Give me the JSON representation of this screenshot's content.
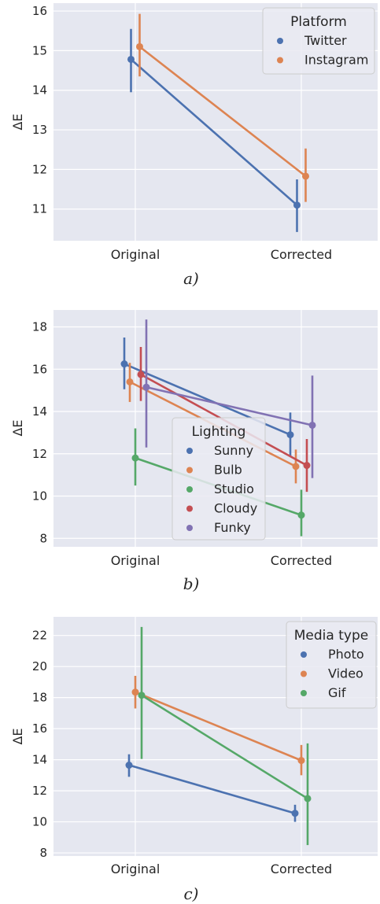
{
  "chart_data": [
    {
      "type": "point",
      "ylabel": "ΔE",
      "caption": "a)",
      "categories": [
        "Original",
        "Corrected"
      ],
      "ylim": [
        10.2,
        16.2
      ],
      "yticks": [
        11,
        12,
        13,
        14,
        15,
        16
      ],
      "grid": true,
      "legend": {
        "title": "Platform",
        "placement": "top-right"
      },
      "series": [
        {
          "name": "Twitter",
          "color": "#4c72b0",
          "values": [
            14.78,
            11.1
          ],
          "ci": [
            [
              13.95,
              15.55
            ],
            [
              10.42,
              11.75
            ]
          ]
        },
        {
          "name": "Instagram",
          "color": "#dd8452",
          "values": [
            15.1,
            11.83
          ],
          "ci": [
            [
              14.35,
              15.93
            ],
            [
              11.18,
              12.53
            ]
          ]
        }
      ]
    },
    {
      "type": "point",
      "ylabel": "ΔE",
      "caption": "b)",
      "categories": [
        "Original",
        "Corrected"
      ],
      "ylim": [
        7.6,
        18.8
      ],
      "yticks": [
        8,
        10,
        12,
        14,
        16,
        18
      ],
      "grid": true,
      "legend": {
        "title": "Lighting",
        "placement": "center"
      },
      "series": [
        {
          "name": "Sunny",
          "color": "#4c72b0",
          "values": [
            16.25,
            12.9
          ],
          "ci": [
            [
              15.05,
              17.5
            ],
            [
              11.9,
              13.95
            ]
          ]
        },
        {
          "name": "Bulb",
          "color": "#dd8452",
          "values": [
            15.4,
            11.4
          ],
          "ci": [
            [
              14.45,
              16.3
            ],
            [
              10.6,
              12.2
            ]
          ]
        },
        {
          "name": "Studio",
          "color": "#55a868",
          "values": [
            11.8,
            9.1
          ],
          "ci": [
            [
              10.5,
              13.2
            ],
            [
              8.1,
              10.3
            ]
          ]
        },
        {
          "name": "Cloudy",
          "color": "#c44e52",
          "values": [
            15.75,
            11.45
          ],
          "ci": [
            [
              14.5,
              17.05
            ],
            [
              10.2,
              12.7
            ]
          ]
        },
        {
          "name": "Funky",
          "color": "#8172b3",
          "values": [
            15.15,
            13.35
          ],
          "ci": [
            [
              12.3,
              18.35
            ],
            [
              10.85,
              15.7
            ]
          ]
        }
      ]
    },
    {
      "type": "point",
      "ylabel": "ΔE",
      "caption": "c)",
      "categories": [
        "Original",
        "Corrected"
      ],
      "ylim": [
        7.8,
        23.2
      ],
      "yticks": [
        8,
        10,
        12,
        14,
        16,
        18,
        20,
        22
      ],
      "grid": true,
      "legend": {
        "title": "Media type",
        "placement": "top-right"
      },
      "series": [
        {
          "name": "Photo",
          "color": "#4c72b0",
          "values": [
            13.65,
            10.55
          ],
          "ci": [
            [
              12.9,
              14.35
            ],
            [
              10.0,
              11.1
            ]
          ]
        },
        {
          "name": "Video",
          "color": "#dd8452",
          "values": [
            18.35,
            13.95
          ],
          "ci": [
            [
              17.3,
              19.4
            ],
            [
              13.0,
              14.95
            ]
          ]
        },
        {
          "name": "Gif",
          "color": "#55a868",
          "values": [
            18.15,
            11.5
          ],
          "ci": [
            [
              14.05,
              22.55
            ],
            [
              8.5,
              15.05
            ]
          ]
        }
      ]
    }
  ]
}
